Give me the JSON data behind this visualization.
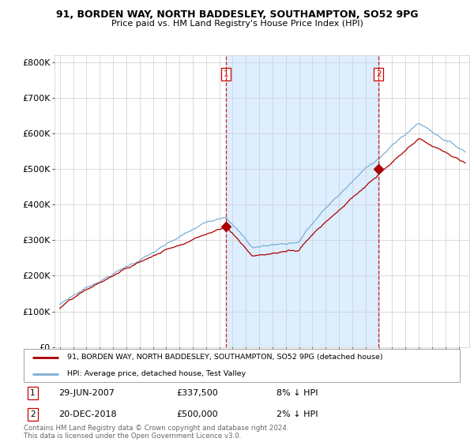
{
  "title1": "91, BORDEN WAY, NORTH BADDESLEY, SOUTHAMPTON, SO52 9PG",
  "title2": "Price paid vs. HM Land Registry's House Price Index (HPI)",
  "ylabel_ticks": [
    "£0",
    "£100K",
    "£200K",
    "£300K",
    "£400K",
    "£500K",
    "£600K",
    "£700K",
    "£800K"
  ],
  "ytick_vals": [
    0,
    100000,
    200000,
    300000,
    400000,
    500000,
    600000,
    700000,
    800000
  ],
  "ylim": [
    0,
    820000
  ],
  "sale1_date": "29-JUN-2007",
  "sale1_price": 337500,
  "sale1_price_str": "£337,500",
  "sale1_hpi": "8% ↓ HPI",
  "sale1_x": 2007.5,
  "sale1_y": 337500,
  "sale2_date": "20-DEC-2018",
  "sale2_price": 500000,
  "sale2_price_str": "£500,000",
  "sale2_hpi": "2% ↓ HPI",
  "sale2_x": 2018.97,
  "sale2_y": 500000,
  "legend1": "91, BORDEN WAY, NORTH BADDESLEY, SOUTHAMPTON, SO52 9PG (detached house)",
  "legend2": "HPI: Average price, detached house, Test Valley",
  "footer": "Contains HM Land Registry data © Crown copyright and database right 2024.\nThis data is licensed under the Open Government Licence v3.0.",
  "line_color_red": "#aa0000",
  "line_color_blue": "#7bafd4",
  "shade_color": "#ddeeff",
  "vline_color": "#cc0000",
  "background_color": "#ffffff",
  "grid_color": "#cccccc",
  "xlim_left": 1994.6,
  "xlim_right": 2025.8,
  "start_year": 1995,
  "end_year": 2025
}
